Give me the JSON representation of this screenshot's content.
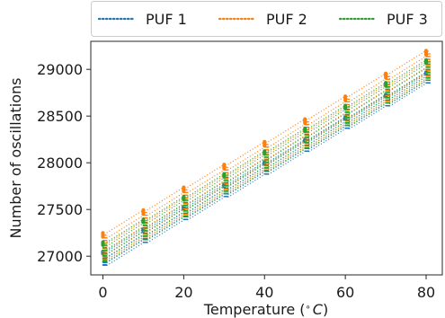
{
  "chart_data": {
    "type": "scatter",
    "style": "dotted vertical bands of points at each temperature",
    "xlabel": "Temperature ($^\\circ C$)",
    "xlabel_main": "Temperature (",
    "xlabel_sup": "∘",
    "xlabel_unit": "C",
    "xlabel_close": ")",
    "ylabel": "Number of oscillations",
    "xlim": [
      -3,
      84
    ],
    "ylim": [
      26800,
      29300
    ],
    "x_ticks": [
      0,
      20,
      40,
      60,
      80
    ],
    "x_tick_labels": [
      "0",
      "20",
      "40",
      "60",
      "80"
    ],
    "y_ticks": [
      27000,
      27500,
      28000,
      28500,
      29000
    ],
    "y_tick_labels": [
      "27000",
      "27500",
      "28000",
      "28500",
      "29000"
    ],
    "temperatures": [
      0,
      10,
      20,
      30,
      40,
      50,
      60,
      70,
      80
    ],
    "grid": false,
    "legend_position": "top, outside plot, horizontal",
    "series": [
      {
        "name": "PUF 1",
        "color": "#1f77b4",
        "min_at_0": 26900,
        "max_at_0": 27050,
        "min_at_80": 28850,
        "max_at_80": 28970
      },
      {
        "name": "PUF 2",
        "color": "#ff7f0e",
        "min_at_0": 26960,
        "max_at_0": 27250,
        "min_at_80": 28900,
        "max_at_80": 29200
      },
      {
        "name": "PUF 3",
        "color": "#2ca02c",
        "min_at_0": 26940,
        "max_at_0": 27150,
        "min_at_80": 28880,
        "max_at_80": 29100
      }
    ]
  }
}
